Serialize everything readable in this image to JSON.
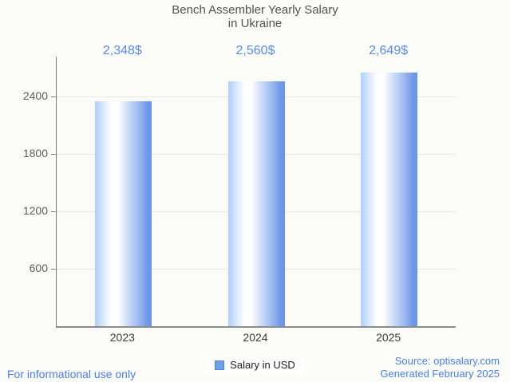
{
  "legend": {
    "label": "Salary in USD"
  },
  "footer": {
    "left": "For informational use only",
    "right_line1": "Source: optisalary.com",
    "right_line2": "Generated February 2025"
  },
  "colors": {
    "background": "#fbfbf8",
    "accent_value_text": "#5b8ce6",
    "link_text": "#4d81e0",
    "bar_gradient_left": "#aecff8",
    "bar_gradient_highlight": "#ffffff",
    "bar_gradient_right": "#6e94e7",
    "legend_swatch": "#6f9fe8",
    "legend_swatch_border": "#5583cf",
    "gridline": "#e8e8e5",
    "axis": "#7e7e7e",
    "title_text": "#525252"
  },
  "chart_data": {
    "type": "bar",
    "title": "Bench Assembler Yearly Salary in Ukraine",
    "title_display": "Bench Assembler Yearly Salary\nin Ukraine",
    "categories": [
      "2023",
      "2024",
      "2025"
    ],
    "series": [
      {
        "name": "Salary in USD",
        "values": [
          2348,
          2560,
          2649
        ]
      }
    ],
    "data_labels": [
      "2,348$",
      "2,560$",
      "2,649$"
    ],
    "xlabel": "",
    "ylabel": "",
    "y_ticks": [
      600,
      1200,
      1800,
      2400
    ],
    "ylim": [
      0,
      2817
    ],
    "grid": "horizontal-only",
    "legend_position": "bottom"
  }
}
